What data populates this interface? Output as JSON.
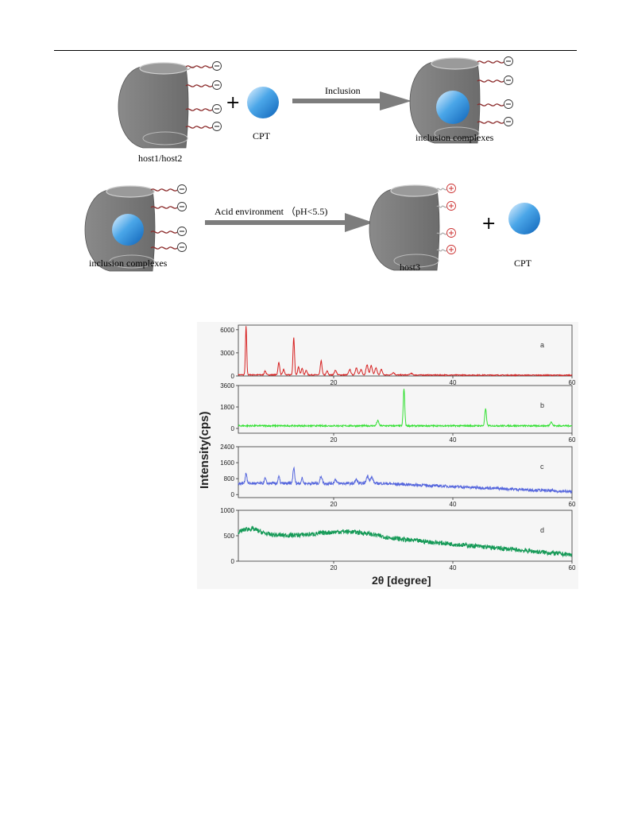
{
  "scheme": {
    "row1": {
      "host_label": "host1/host2",
      "plus": "+",
      "guest_label": "CPT",
      "arrow_label": "Inclusion",
      "product_label": "inclusion complexes"
    },
    "row2": {
      "reactant_label": "inclusion complexes",
      "arrow_label": "Acid environment （pH<5.5)",
      "product_label": "host3",
      "plus": "+",
      "guest_label": "CPT"
    },
    "charges": {
      "negative": "−",
      "positive": "+"
    },
    "colors": {
      "host": "#7a7a7a",
      "guest": "#2a8fd6",
      "arrow": "#7d7d7d",
      "chain": "#8b2a2a"
    }
  },
  "chart_data": {
    "type": "line",
    "xlabel": "2θ [degree]",
    "ylabel": "Intensity(cps)",
    "xlim": [
      4,
      60
    ],
    "x_ticks": [
      20,
      40,
      60
    ],
    "x_tick_labels": [
      "20",
      "40",
      "60"
    ],
    "panels": [
      {
        "name": "a",
        "color": "#d62020",
        "ylim": [
          0,
          6600
        ],
        "y_ticks": [
          0,
          3000,
          6000
        ],
        "y_tick_labels": [
          "0",
          "3000",
          "6000"
        ],
        "baseline": 120,
        "noise": 60,
        "peaks": [
          [
            5.3,
            6300,
            0.15
          ],
          [
            8.5,
            500,
            0.2
          ],
          [
            10.8,
            1600,
            0.2
          ],
          [
            11.6,
            700,
            0.2
          ],
          [
            13.3,
            4800,
            0.18
          ],
          [
            14.1,
            1000,
            0.2
          ],
          [
            14.7,
            900,
            0.2
          ],
          [
            15.4,
            600,
            0.2
          ],
          [
            17.9,
            1800,
            0.2
          ],
          [
            18.9,
            500,
            0.2
          ],
          [
            20.3,
            600,
            0.25
          ],
          [
            22.7,
            700,
            0.25
          ],
          [
            23.8,
            900,
            0.25
          ],
          [
            24.6,
            700,
            0.25
          ],
          [
            25.6,
            1300,
            0.25
          ],
          [
            26.3,
            1200,
            0.25
          ],
          [
            27.1,
            900,
            0.25
          ],
          [
            28.0,
            700,
            0.25
          ],
          [
            30.0,
            300,
            0.3
          ],
          [
            33.0,
            200,
            0.3
          ]
        ]
      },
      {
        "name": "b",
        "color": "#33e033",
        "ylim": [
          -400,
          3600
        ],
        "y_ticks": [
          0,
          1800,
          3600
        ],
        "y_tick_labels": [
          "0",
          "1800",
          "3600"
        ],
        "baseline": 220,
        "noise": 60,
        "peaks": [
          [
            27.4,
            420,
            0.25
          ],
          [
            31.8,
            3100,
            0.18
          ],
          [
            45.5,
            1400,
            0.2
          ],
          [
            56.5,
            330,
            0.25
          ]
        ]
      },
      {
        "name": "c",
        "color": "#5566dd",
        "ylim": [
          -150,
          2400
        ],
        "y_ticks": [
          0,
          800,
          1600,
          2400
        ],
        "y_tick_labels": [
          "0",
          "800",
          "1600",
          "2400"
        ],
        "baseline": 560,
        "noise": 70,
        "peaks": [
          [
            5.3,
            520,
            0.2
          ],
          [
            8.5,
            250,
            0.2
          ],
          [
            10.8,
            330,
            0.2
          ],
          [
            13.3,
            780,
            0.2
          ],
          [
            14.7,
            260,
            0.2
          ],
          [
            17.9,
            360,
            0.25
          ],
          [
            20.3,
            200,
            0.25
          ],
          [
            23.8,
            200,
            0.25
          ],
          [
            25.7,
            380,
            0.3
          ],
          [
            26.4,
            300,
            0.3
          ]
        ]
      },
      {
        "name": "d",
        "color": "#159a57",
        "ylim": [
          0,
          1000
        ],
        "y_ticks": [
          0,
          500,
          1000
        ],
        "y_tick_labels": [
          "0",
          "500",
          "1000"
        ],
        "baseline": 560,
        "noise": 45,
        "peaks": []
      }
    ]
  }
}
